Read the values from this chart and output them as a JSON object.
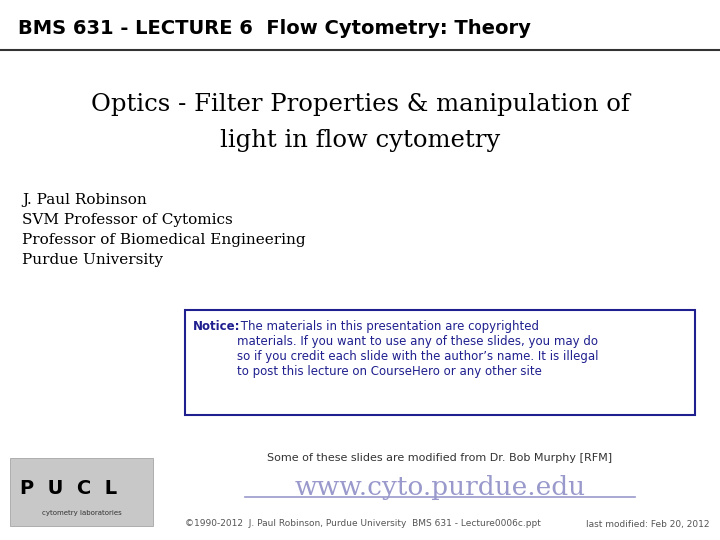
{
  "header_text": "BMS 631 - LECTURE 6  Flow Cytometry: Theory",
  "title_line1": "Optics - Filter Properties & manipulation of",
  "title_line2": "light in flow cytometry",
  "author_lines": [
    "J. Paul Robinson",
    "SVM Professor of Cytomics",
    "Professor of Biomedical Engineering",
    "Purdue University"
  ],
  "notice_bold": "Notice:",
  "notice_rest": " The materials in this presentation are copyrighted\nmaterials. If you want to use any of these slides, you may do\nso if you credit each slide with the author’s name. It is illegal\nto post this lecture on CourseHero or any other site",
  "modified_text": "Some of these slides are modified from Dr. Bob Murphy [RFM]",
  "website": "www.cyto.purdue.edu",
  "copyright_text": "©1990-2012  J. Paul Robinson, Purdue University  BMS 631 - Lecture0006c.ppt",
  "last_modified": "last modified: Feb 20, 2012",
  "header_fg": "#000000",
  "notice_color": "#1f1f8f",
  "website_color": "#9999cc",
  "bg_color": "#ffffff",
  "title_color": "#000000",
  "line_color": "#555555",
  "small_text_color": "#555555"
}
